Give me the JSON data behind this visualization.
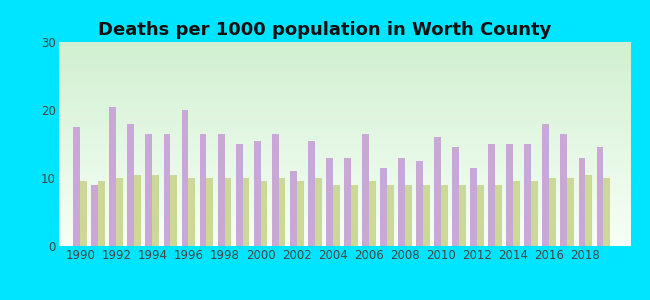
{
  "title": "Deaths per 1000 population in Worth County",
  "years": [
    1990,
    1991,
    1992,
    1993,
    1994,
    1995,
    1996,
    1997,
    1998,
    1999,
    2000,
    2001,
    2002,
    2003,
    2004,
    2005,
    2006,
    2007,
    2008,
    2009,
    2010,
    2011,
    2012,
    2013,
    2014,
    2015,
    2016,
    2017,
    2018,
    2019
  ],
  "worth_county": [
    17.5,
    9.0,
    20.5,
    18.0,
    16.5,
    16.5,
    20.0,
    16.5,
    16.5,
    15.0,
    15.5,
    16.5,
    11.0,
    15.5,
    13.0,
    13.0,
    16.5,
    11.5,
    13.0,
    12.5,
    16.0,
    14.5,
    11.5,
    15.0,
    15.0,
    15.0,
    18.0,
    16.5,
    13.0,
    14.5
  ],
  "missouri": [
    9.5,
    9.5,
    10.0,
    10.5,
    10.5,
    10.5,
    10.0,
    10.0,
    10.0,
    10.0,
    9.5,
    10.0,
    9.5,
    10.0,
    9.0,
    9.0,
    9.5,
    9.0,
    9.0,
    9.0,
    9.0,
    9.0,
    9.0,
    9.0,
    9.5,
    9.5,
    10.0,
    10.0,
    10.5,
    10.0
  ],
  "worth_county_color": "#c9a8d8",
  "missouri_color": "#ccd898",
  "background_outer": "#00e5ff",
  "ylim": [
    0,
    30
  ],
  "yticks": [
    0,
    10,
    20,
    30
  ],
  "xlabel_ticks": [
    1990,
    1992,
    1994,
    1996,
    1998,
    2000,
    2002,
    2004,
    2006,
    2008,
    2010,
    2012,
    2014,
    2016,
    2018
  ],
  "bar_width": 0.38,
  "title_fontsize": 13,
  "tick_fontsize": 8.5,
  "legend_fontsize": 9.5
}
